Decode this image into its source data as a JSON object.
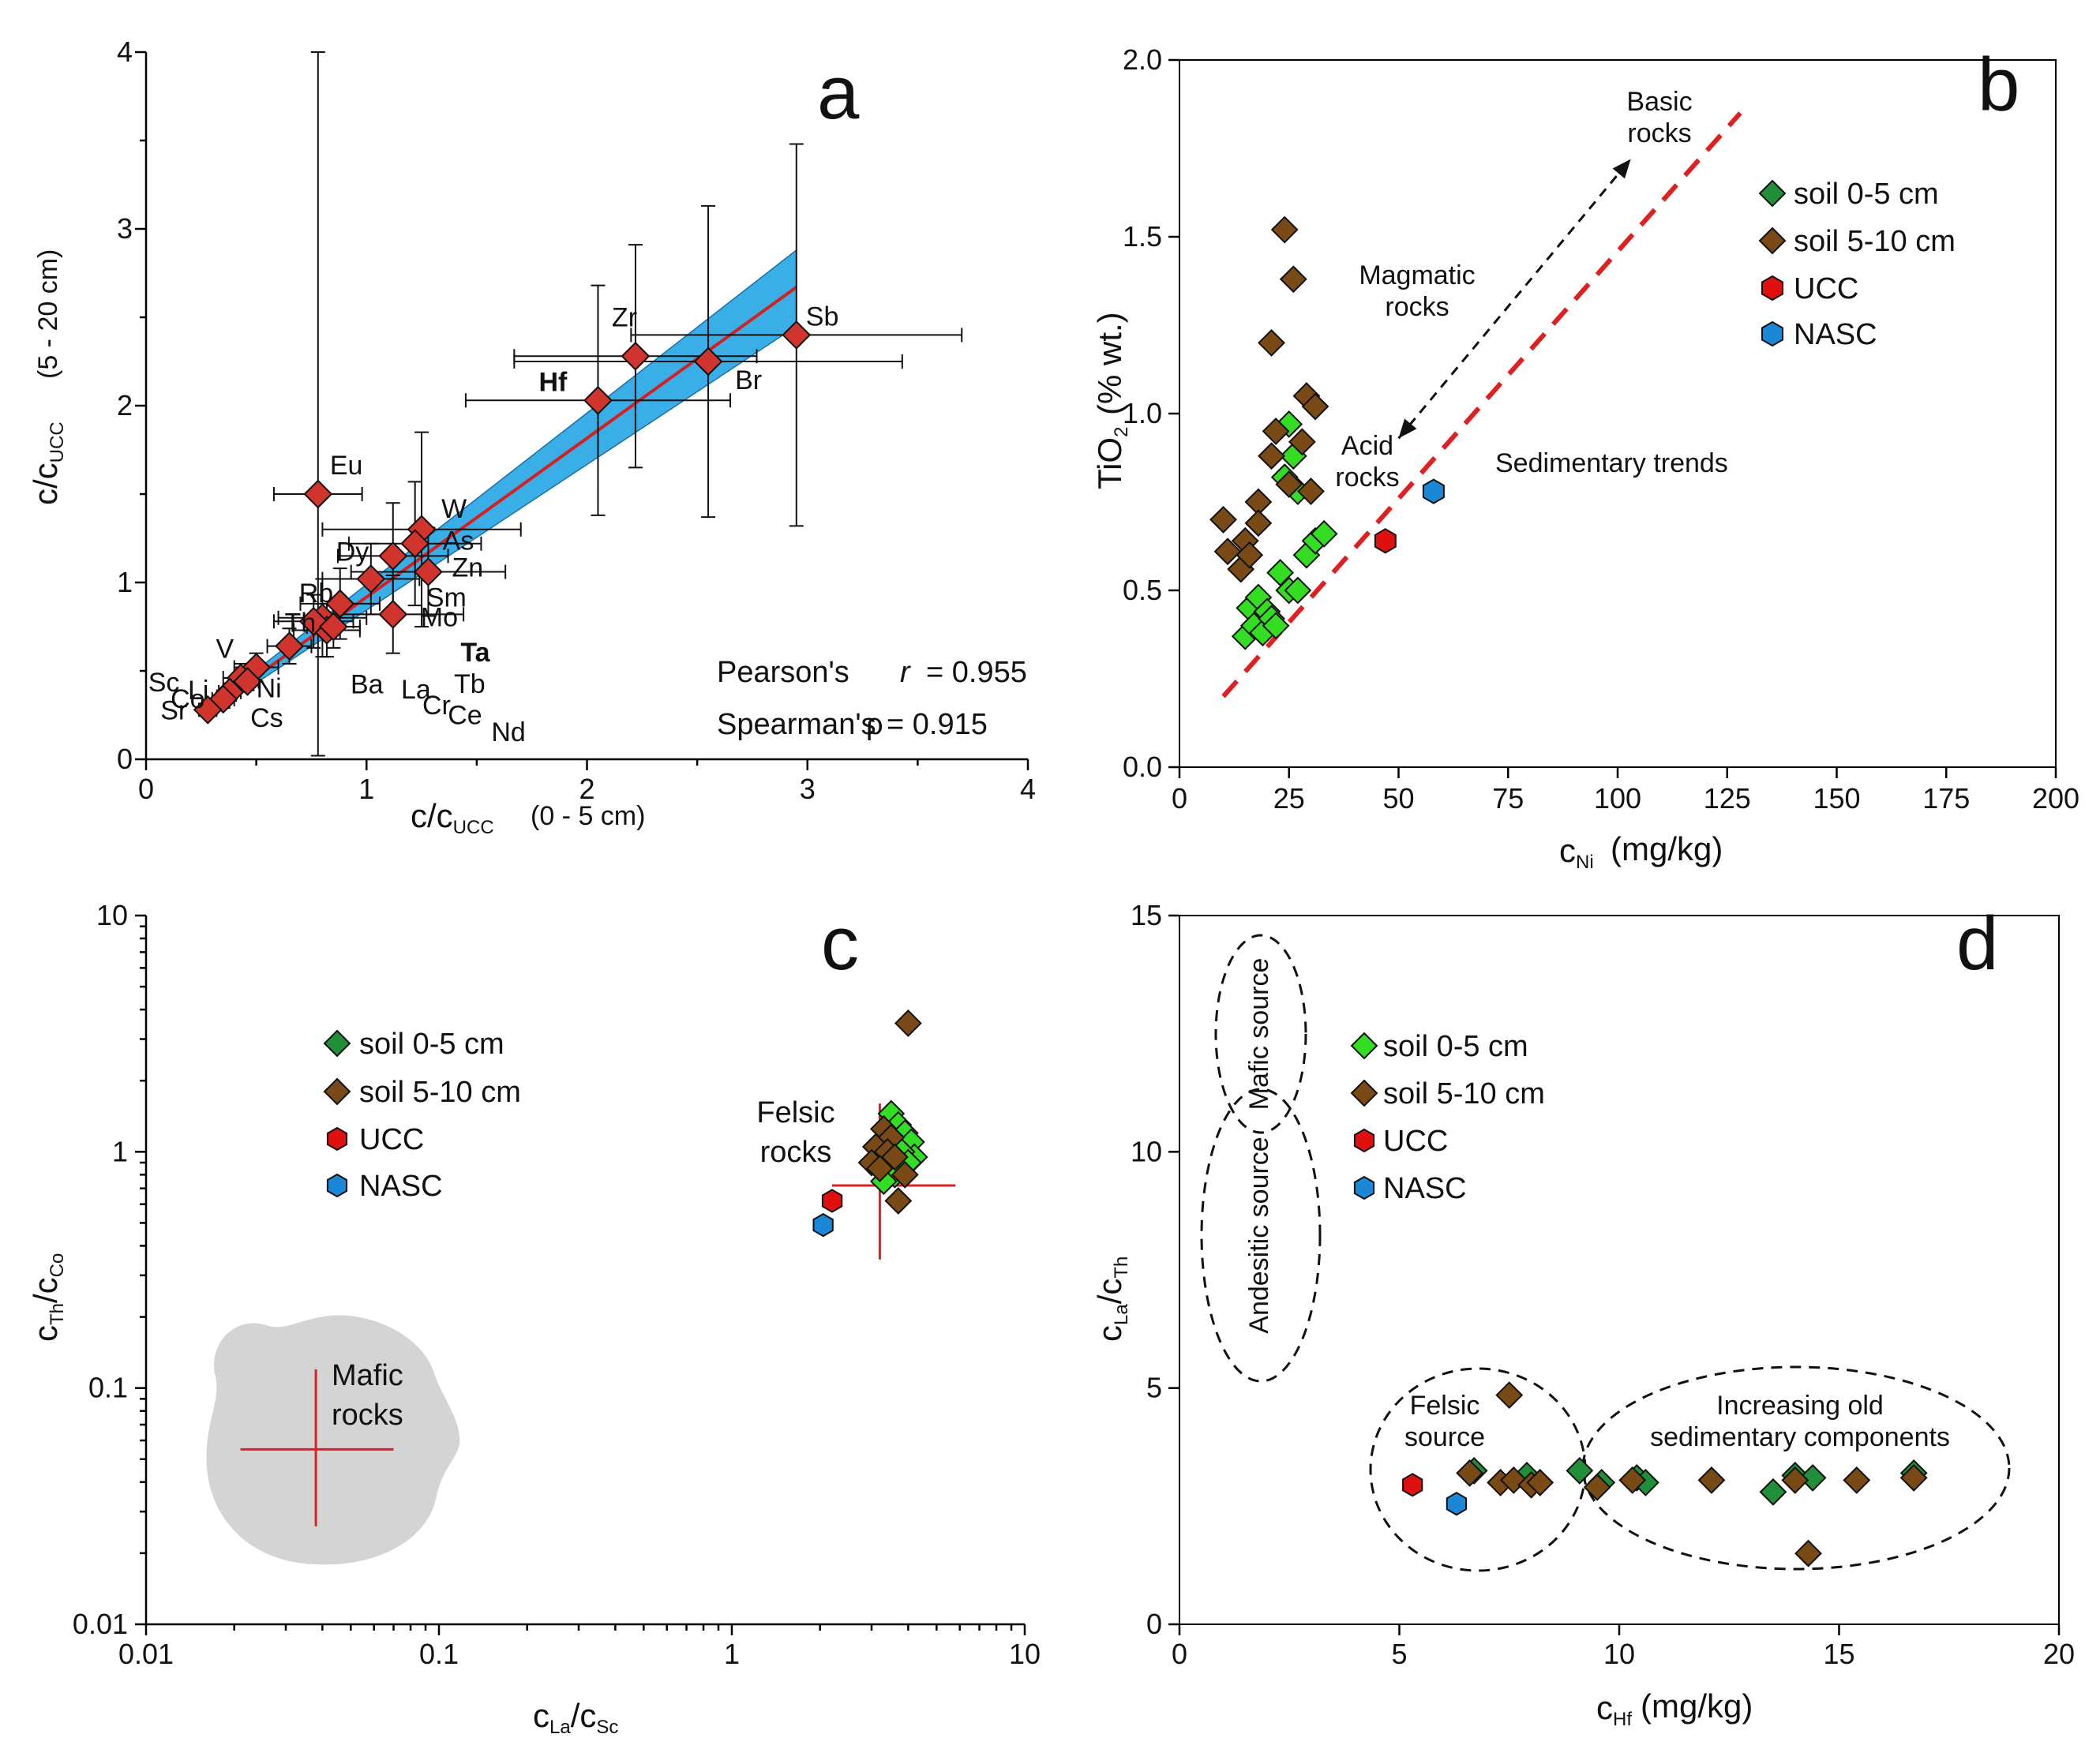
{
  "colors": {
    "soil_0_5": "#1f8f3a",
    "soil_0_5_light": "#33dd22",
    "soil_5_10": "#7a4a16",
    "ucc": "#e01010",
    "nasc": "#1a88d6",
    "diamond_red": "#d0342c",
    "band": "#3aaee6",
    "fit_line": "#d62020",
    "mafic_fill": "#d4d4d4"
  },
  "chart_data": [
    {
      "panel": "a",
      "type": "scatter",
      "panel_label": "a",
      "xlabel_main": "c/c",
      "xlabel_sub": "UCC",
      "xlabel_tail": " (0 - 5 cm)",
      "ylabel_main": "c/c",
      "ylabel_sub": "UCC",
      "ylabel_tail": " (5 - 20 cm)",
      "xlim": [
        0,
        4
      ],
      "ylim": [
        0,
        4
      ],
      "xticks": [
        0,
        1,
        2,
        3,
        4
      ],
      "yticks": [
        0,
        1,
        2,
        3,
        4
      ],
      "fit": {
        "x": [
          0.28,
          2.95
        ],
        "y": [
          0.27,
          2.67
        ],
        "band_upper": [
          0.29,
          2.88
        ],
        "band_lower": [
          0.25,
          2.45
        ]
      },
      "stats": {
        "pearson_label": "Pearson's ",
        "pearson_r": "r",
        "pearson_value": "= 0.955",
        "spearman_label": "Spearman's ",
        "spearman_rho": "ρ",
        "spearman_value": "= 0.915"
      },
      "points": [
        {
          "el": "Sb",
          "x": 2.95,
          "y": 2.4,
          "xerr": 0.75,
          "yerr": 1.08
        },
        {
          "el": "Zr",
          "x": 2.22,
          "y": 2.28,
          "xerr": 0.55,
          "yerr": 0.63
        },
        {
          "el": "Br",
          "x": 2.55,
          "y": 2.25,
          "xerr": 0.88,
          "yerr": 0.88
        },
        {
          "el": "Hf",
          "x": 2.05,
          "y": 2.03,
          "xerr": 0.6,
          "yerr": 0.65
        },
        {
          "el": "Eu",
          "x": 0.78,
          "y": 1.5,
          "xerr": 0.2,
          "yerr": 2.5
        },
        {
          "el": "W",
          "x": 1.25,
          "y": 1.3,
          "xerr": 0.45,
          "yerr": 0.55
        },
        {
          "el": "As",
          "x": 1.22,
          "y": 1.22,
          "xerr": 0.3,
          "yerr": 0.35
        },
        {
          "el": "Dy",
          "x": 1.12,
          "y": 1.15,
          "xerr": 0.25,
          "yerr": 0.3
        },
        {
          "el": "Zn",
          "x": 1.28,
          "y": 1.06,
          "xerr": 0.35,
          "yerr": 0.25
        },
        {
          "el": "Sm",
          "x": 1.02,
          "y": 1.02,
          "xerr": 0.22,
          "yerr": 0.2
        },
        {
          "el": "Mo",
          "x": 1.12,
          "y": 0.82,
          "xerr": 0.32,
          "yerr": 0.22
        },
        {
          "el": "Rb",
          "x": 0.88,
          "y": 0.88,
          "xerr": 0.18,
          "yerr": 0.2
        },
        {
          "el": "Ta",
          "x": 0.8,
          "y": 0.8,
          "xerr": 0.2,
          "yerr": 0.22
        },
        {
          "el": "Ba",
          "x": 0.82,
          "y": 0.73,
          "xerr": 0.15,
          "yerr": 0.15
        },
        {
          "el": "Ce",
          "x": 0.76,
          "y": 0.78,
          "xerr": 0.18,
          "yerr": 0.15
        },
        {
          "el": "Nd",
          "x": 0.85,
          "y": 0.75,
          "xerr": 0.12,
          "yerr": 0.12
        },
        {
          "el": "Th",
          "x": 0.65,
          "y": 0.64,
          "xerr": 0.1,
          "yerr": 0.1
        },
        {
          "el": "Ni",
          "x": 0.5,
          "y": 0.52,
          "xerr": 0.1,
          "yerr": 0.08
        },
        {
          "el": "Cs",
          "x": 0.43,
          "y": 0.46,
          "xerr": 0.08,
          "yerr": 0.08
        },
        {
          "el": "V",
          "x": 0.46,
          "y": 0.44,
          "xerr": 0.05,
          "yerr": 0.05
        },
        {
          "el": "Co",
          "x": 0.38,
          "y": 0.38,
          "xerr": 0.05,
          "yerr": 0.05
        },
        {
          "el": "Sc",
          "x": 0.35,
          "y": 0.34,
          "xerr": 0.05,
          "yerr": 0.05
        },
        {
          "el": "Sr",
          "x": 0.28,
          "y": 0.28,
          "xerr": 0.04,
          "yerr": 0.04
        }
      ],
      "extra_labels": [
        "La",
        "Tb",
        "Cr",
        "Li"
      ]
    },
    {
      "panel": "b",
      "type": "scatter",
      "panel_label": "b",
      "xlabel_main": "c",
      "xlabel_sub": "Ni",
      "xlabel_tail": " (mg/kg)",
      "ylabel_main": "TiO",
      "ylabel_sub": "2",
      "ylabel_tail": " (% wt.)",
      "xlim": [
        0,
        200
      ],
      "ylim": [
        0.0,
        2.0
      ],
      "xticks": [
        "0",
        "25",
        "50",
        "75",
        "100",
        "125",
        "150",
        "175",
        "200"
      ],
      "yticks": [
        "0.0",
        "0.5",
        "1.0",
        "1.5",
        "2.0"
      ],
      "legend": [
        "soil 0-5 cm",
        "soil 5-10 cm",
        "UCC",
        "NASC"
      ],
      "annotations": {
        "basic": [
          "Basic",
          "rocks"
        ],
        "magmatic": [
          "Magmatic",
          "rocks"
        ],
        "acid": [
          "Acid",
          "rocks"
        ],
        "sedimentary": "Sedimentary trends"
      },
      "trend_line": {
        "x": [
          10,
          128
        ],
        "y": [
          0.2,
          1.85
        ]
      },
      "arrow": {
        "from": [
          50,
          0.93
        ],
        "to": [
          103,
          1.72
        ]
      },
      "soil_0_5": [
        [
          15,
          0.37
        ],
        [
          16,
          0.45
        ],
        [
          17,
          0.4
        ],
        [
          18,
          0.48
        ],
        [
          19,
          0.38
        ],
        [
          20,
          0.44
        ],
        [
          21,
          0.42
        ],
        [
          22,
          0.4
        ],
        [
          23,
          0.55
        ],
        [
          25,
          0.5
        ],
        [
          27,
          0.5
        ],
        [
          29,
          0.6
        ],
        [
          31,
          0.64
        ],
        [
          33,
          0.66
        ],
        [
          24,
          0.82
        ],
        [
          26,
          0.88
        ],
        [
          25,
          0.97
        ],
        [
          27,
          0.78
        ]
      ],
      "soil_5_10": [
        [
          10,
          0.7
        ],
        [
          11,
          0.61
        ],
        [
          14,
          0.56
        ],
        [
          15,
          0.64
        ],
        [
          16,
          0.6
        ],
        [
          18,
          0.75
        ],
        [
          18,
          0.69
        ],
        [
          21,
          0.88
        ],
        [
          22,
          0.95
        ],
        [
          21,
          1.2
        ],
        [
          24,
          1.52
        ],
        [
          26,
          1.38
        ],
        [
          25,
          0.8
        ],
        [
          28,
          0.92
        ],
        [
          29,
          1.05
        ],
        [
          31,
          1.02
        ],
        [
          30,
          0.78
        ]
      ],
      "ucc": [
        [
          47,
          0.64
        ]
      ],
      "nasc": [
        [
          58,
          0.78
        ]
      ]
    },
    {
      "panel": "c",
      "type": "scatter",
      "panel_label": "c",
      "xscale": "log",
      "yscale": "log",
      "xlabel_main": "c",
      "xlabel_sub": "La",
      "xlabel_tail": "/c",
      "xlabel_sub2": "Sc",
      "ylabel_main": "c",
      "ylabel_sub": "Th",
      "ylabel_tail": "/c",
      "ylabel_sub2": "Co",
      "xlim": [
        0.01,
        10
      ],
      "ylim": [
        0.01,
        10
      ],
      "xticks": [
        "0.01",
        "0.1",
        "1",
        "10"
      ],
      "yticks": [
        "0.01",
        "0.1",
        "1",
        "10"
      ],
      "legend": [
        "soil 0-5 cm",
        "soil 5-10 cm",
        "UCC",
        "NASC"
      ],
      "felsic_label": [
        "Felsic",
        "rocks"
      ],
      "mafic_label": [
        "Mafic",
        "rocks"
      ],
      "felsic_cross": {
        "x": 3.2,
        "y": 0.72,
        "xrange": [
          2.2,
          5.8
        ],
        "yrange": [
          0.35,
          1.6
        ]
      },
      "mafic_cross": {
        "x": 0.038,
        "y": 0.055,
        "xrange": [
          0.021,
          0.07
        ],
        "yrange": [
          0.026,
          0.12
        ]
      },
      "soil_0_5": [
        [
          3.5,
          1.45
        ],
        [
          3.7,
          1.3
        ],
        [
          3.9,
          1.2
        ],
        [
          4.1,
          1.1
        ],
        [
          4.2,
          0.95
        ],
        [
          3.4,
          0.85
        ],
        [
          3.6,
          0.8
        ],
        [
          3.8,
          1.0
        ],
        [
          4.0,
          0.9
        ],
        [
          3.3,
          0.75
        ]
      ],
      "soil_5_10": [
        [
          4.0,
          3.5
        ],
        [
          3.3,
          1.25
        ],
        [
          3.5,
          1.15
        ],
        [
          3.1,
          1.05
        ],
        [
          3.4,
          1.0
        ],
        [
          3.6,
          0.95
        ],
        [
          3.0,
          0.9
        ],
        [
          3.2,
          0.85
        ],
        [
          3.9,
          0.8
        ],
        [
          3.7,
          0.62
        ]
      ],
      "ucc": [
        [
          2.2,
          0.62
        ]
      ],
      "nasc": [
        [
          2.05,
          0.49
        ]
      ]
    },
    {
      "panel": "d",
      "type": "scatter",
      "panel_label": "d",
      "xlabel_main": "c",
      "xlabel_sub": "Hf",
      "xlabel_tail": "(mg/kg)",
      "ylabel_main": "c",
      "ylabel_sub": "La",
      "ylabel_tail": "/c",
      "ylabel_sub2": "Th",
      "xlim": [
        0,
        20
      ],
      "ylim": [
        0,
        15
      ],
      "xticks": [
        "0",
        "5",
        "10",
        "15",
        "20"
      ],
      "yticks": [
        "0",
        "5",
        "10",
        "15"
      ],
      "legend": [
        "soil 0-5 cm",
        "soil 5-10 cm",
        "UCC",
        "NASC"
      ],
      "regions": {
        "mafic": "Mafic source",
        "andesitic": "Andesitic source",
        "felsic": [
          "Felsic",
          "source"
        ],
        "old": [
          "Increasing old",
          "sedimentary components"
        ]
      },
      "soil_0_5": [
        [
          6.7,
          3.25
        ],
        [
          7.9,
          3.15
        ],
        [
          9.1,
          3.25
        ],
        [
          9.6,
          3.0
        ],
        [
          10.4,
          3.1
        ],
        [
          10.6,
          3.0
        ],
        [
          13.5,
          2.8
        ],
        [
          14.0,
          3.15
        ],
        [
          14.4,
          3.1
        ],
        [
          16.7,
          3.2
        ]
      ],
      "soil_5_10": [
        [
          6.6,
          3.2
        ],
        [
          7.3,
          3.0
        ],
        [
          7.5,
          4.85
        ],
        [
          7.6,
          3.05
        ],
        [
          8.0,
          2.95
        ],
        [
          8.2,
          3.0
        ],
        [
          9.5,
          2.9
        ],
        [
          10.3,
          3.05
        ],
        [
          12.1,
          3.05
        ],
        [
          14.0,
          3.05
        ],
        [
          14.3,
          1.5
        ],
        [
          15.4,
          3.05
        ],
        [
          16.7,
          3.1
        ]
      ],
      "ucc": [
        [
          5.3,
          2.95
        ]
      ],
      "nasc": [
        [
          6.3,
          2.55
        ]
      ]
    }
  ]
}
